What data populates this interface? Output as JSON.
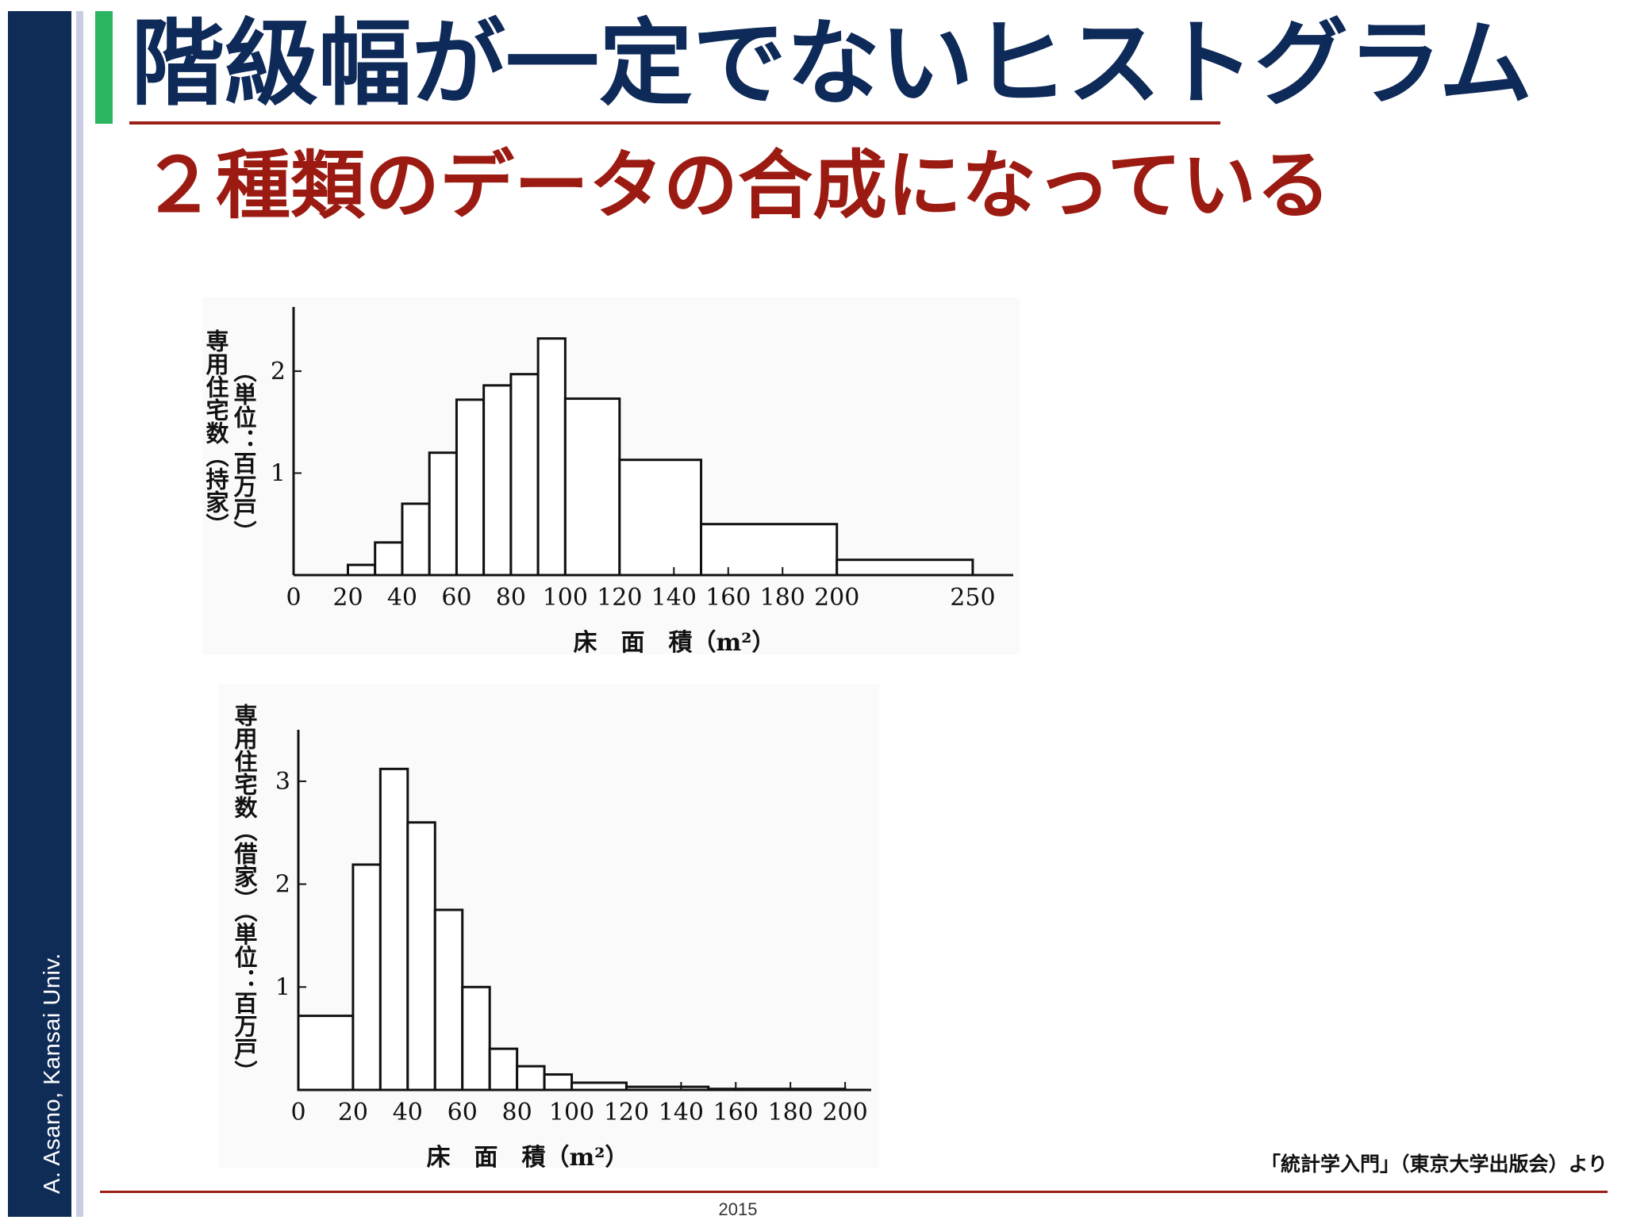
{
  "slide": {
    "title": "階級幅が一定でないヒストグラム",
    "subtitle": "２種類のデータの合成になっている",
    "author": "A. Asano, Kansai Univ.",
    "credit": "「統計学入門」（東京大学出版会）より",
    "year": "2015",
    "colors": {
      "title": "#0e2a59",
      "subtitle": "#9b1b12",
      "accent": "#2bb560",
      "sidebar": "#0f2c57",
      "rule": "#9b1f16"
    }
  },
  "chart_data": [
    {
      "type": "bar",
      "ytitle_a": "専用住宅数（持家）",
      "ytitle_b": "（単位：百万戸）",
      "xlabel": "床　面　積（m²）",
      "xticks": [
        "0",
        "20",
        "40",
        "60",
        "80",
        "100",
        "120",
        "140",
        "160",
        "180",
        "200",
        "250"
      ],
      "yticks": [
        "1",
        "2"
      ],
      "xlim": [
        0,
        262
      ],
      "ylim": [
        0,
        2.45
      ],
      "bins": [
        {
          "from": 20,
          "to": 30,
          "value": 0.1
        },
        {
          "from": 30,
          "to": 40,
          "value": 0.32
        },
        {
          "from": 40,
          "to": 50,
          "value": 0.7
        },
        {
          "from": 50,
          "to": 60,
          "value": 1.2
        },
        {
          "from": 60,
          "to": 70,
          "value": 1.72
        },
        {
          "from": 70,
          "to": 80,
          "value": 1.86
        },
        {
          "from": 80,
          "to": 90,
          "value": 1.97
        },
        {
          "from": 90,
          "to": 100,
          "value": 2.32
        },
        {
          "from": 100,
          "to": 120,
          "value": 1.73
        },
        {
          "from": 120,
          "to": 150,
          "value": 1.13
        },
        {
          "from": 150,
          "to": 200,
          "value": 0.5
        },
        {
          "from": 200,
          "to": 250,
          "value": 0.15
        }
      ]
    },
    {
      "type": "bar",
      "ytitle_a": "専用住宅数（借家）（単位：百万戸）",
      "xlabel": "床　面　積（m²）",
      "xticks": [
        "0",
        "20",
        "40",
        "60",
        "80",
        "100",
        "120",
        "140",
        "160",
        "180",
        "200"
      ],
      "yticks": [
        "1",
        "2",
        "3"
      ],
      "xlim": [
        0,
        202
      ],
      "ylim": [
        0,
        3.3
      ],
      "bins": [
        {
          "from": 0,
          "to": 20,
          "value": 0.72
        },
        {
          "from": 20,
          "to": 30,
          "value": 2.19
        },
        {
          "from": 30,
          "to": 40,
          "value": 3.12
        },
        {
          "from": 40,
          "to": 50,
          "value": 2.6
        },
        {
          "from": 50,
          "to": 60,
          "value": 1.75
        },
        {
          "from": 60,
          "to": 70,
          "value": 1.0
        },
        {
          "from": 70,
          "to": 80,
          "value": 0.4
        },
        {
          "from": 80,
          "to": 90,
          "value": 0.23
        },
        {
          "from": 90,
          "to": 100,
          "value": 0.15
        },
        {
          "from": 100,
          "to": 120,
          "value": 0.07
        },
        {
          "from": 120,
          "to": 150,
          "value": 0.03
        },
        {
          "from": 150,
          "to": 200,
          "value": 0.01
        }
      ]
    }
  ]
}
